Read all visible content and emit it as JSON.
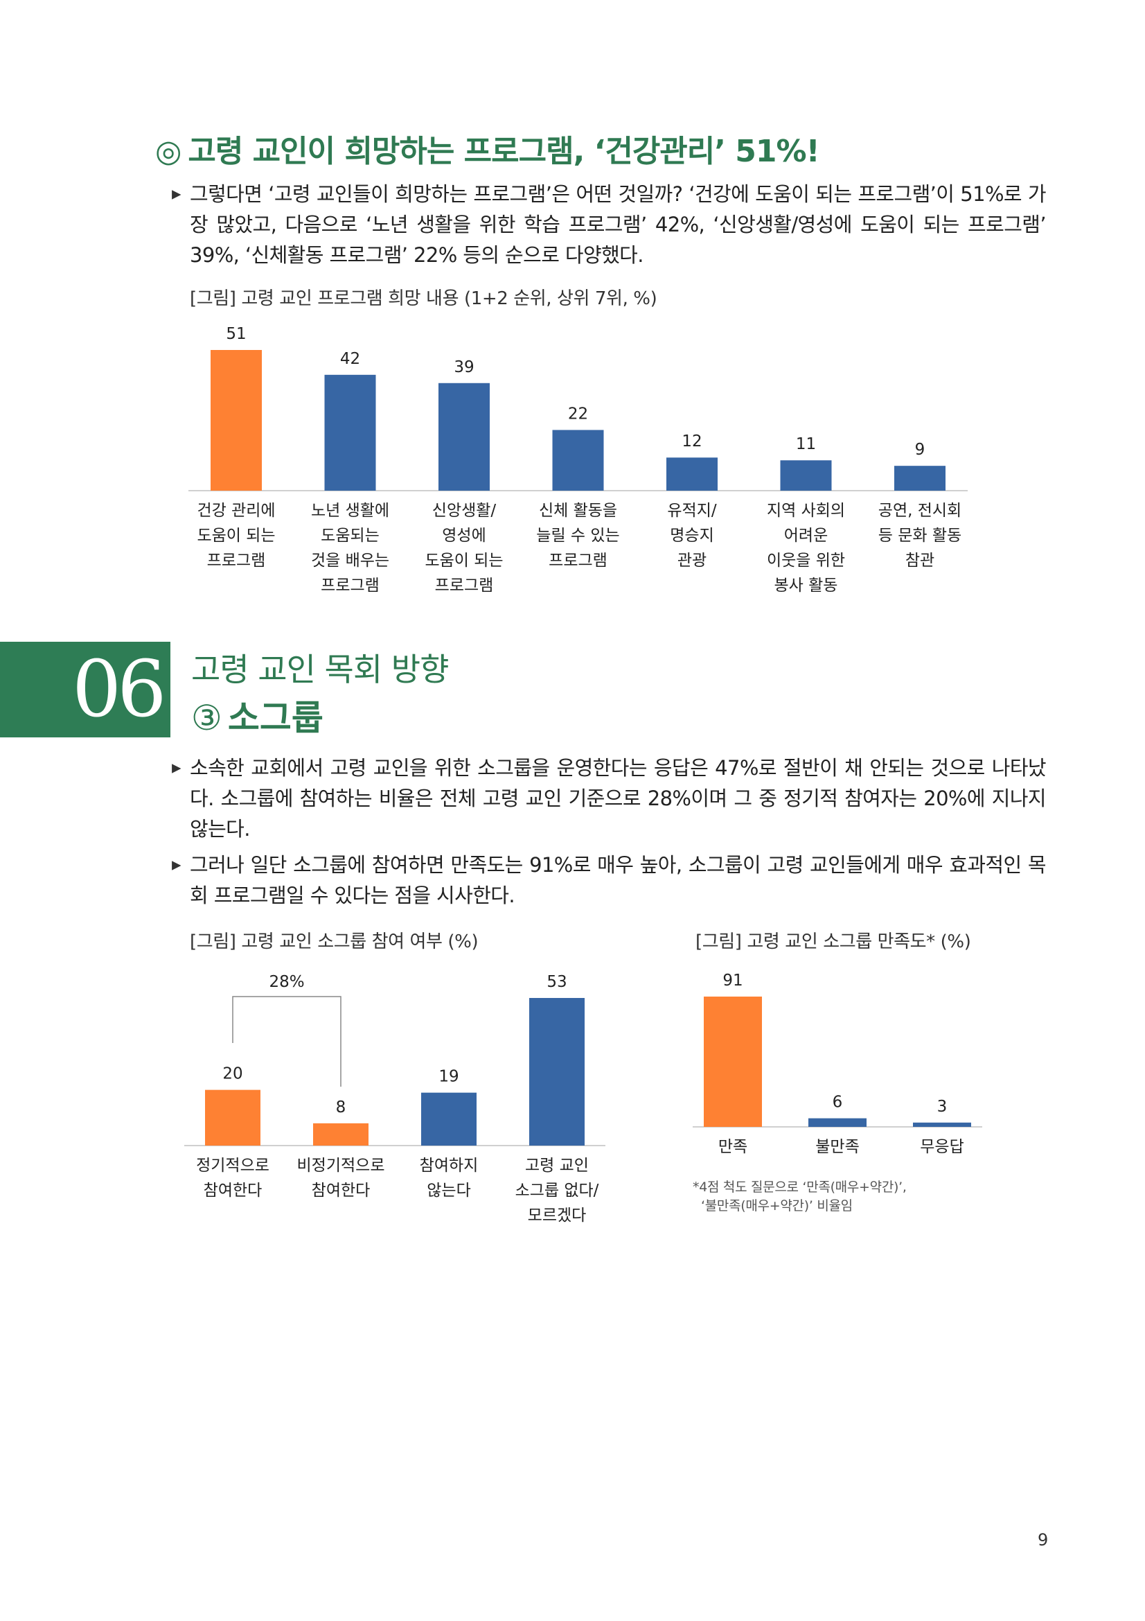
{
  "heading": {
    "mark": "◎",
    "text": "고령 교인이 희망하는 프로그램, ‘건강관리’ 51%!"
  },
  "intro": {
    "bullet": "▸",
    "paragraph": "그렇다면 ‘고령 교인들이 희망하는 프로그램’은 어떤 것일까? ‘건강에 도움이 되는 프로그램’이 51%로 가장 많았고, 다음으로 ‘노년 생활을 위한 학습 프로그램’ 42%, ‘신앙생활/영성에 도움이 되는 프로그램’ 39%, ‘신체활동 프로그램’ 22% 등의 순으로 다양했다."
  },
  "chart1": {
    "caption": "[그림] 고령 교인 프로그램 희망 내용 (1+2 순위, 상위 7위, %)"
  },
  "section": {
    "number": "06",
    "title": "고령 교인 목회 방향",
    "sub_mark": "③",
    "subtitle": "소그룹"
  },
  "body": {
    "bullets": [
      "▸",
      "▸"
    ],
    "paragraphs": [
      "소속한 교회에서 고령 교인을 위한 소그룹을 운영한다는 응답은 47%로 절반이 채 안되는 것으로 나타났다. 소그룹에 참여하는 비율은 전체 고령 교인 기준으로 28%이며 그 중 정기적 참여자는 20%에 지나지 않는다.",
      "그러나 일단 소그룹에 참여하면 만족도는 91%로 매우 높아, 소그룹이 고령 교인들에게 매우 효과적인 목회 프로그램일 수 있다는 점을 시사한다."
    ]
  },
  "chart2": {
    "caption": "[그림] 고령 교인 소그룹 참여 여부 (%)",
    "bracket_label": "28%"
  },
  "chart3": {
    "caption": "[그림] 고령 교인 소그룹 만족도* (%)",
    "footnote_line1": "*4점 척도 질문으로 ‘만족(매우+약간)’,",
    "footnote_line2": "‘불만족(매우+약간)’ 비율임"
  },
  "colors": {
    "orange": "#fe8133",
    "blue": "#3766a4",
    "green": "#2f7a52",
    "axis": "#d0d0d0"
  },
  "page_number": "9",
  "chart_data": [
    {
      "type": "bar",
      "categories": [
        [
          "건강 관리에",
          "도움이 되는",
          "프로그램"
        ],
        [
          "노년 생활에",
          "도움되는",
          "것을 배우는",
          "프로그램"
        ],
        [
          "신앙생활/",
          "영성에",
          "도움이 되는",
          "프로그램"
        ],
        [
          "신체 활동을",
          "늘릴 수 있는",
          "프로그램"
        ],
        [
          "유적지/",
          "명승지",
          "관광"
        ],
        [
          "지역 사회의",
          "어려운",
          "이웃을 위한",
          "봉사 활동"
        ],
        [
          "공연, 전시회",
          "등 문화 활동",
          "참관"
        ]
      ],
      "values": [
        51,
        42,
        39,
        22,
        12,
        11,
        9
      ],
      "highlight": [
        0
      ],
      "ylim": [
        0,
        51
      ]
    },
    {
      "type": "bar",
      "categories": [
        [
          "정기적으로",
          "참여한다"
        ],
        [
          "비정기적으로",
          "참여한다"
        ],
        [
          "참여하지",
          "않는다"
        ],
        [
          "고령 교인",
          "소그룹 없다/",
          "모르겠다"
        ]
      ],
      "values": [
        20,
        8,
        19,
        53
      ],
      "highlight": [
        0,
        1
      ],
      "ylim": [
        0,
        53
      ]
    },
    {
      "type": "bar",
      "categories": [
        [
          "만족"
        ],
        [
          "불만족"
        ],
        [
          "무응답"
        ]
      ],
      "values": [
        91,
        6,
        3
      ],
      "highlight": [
        0
      ],
      "ylim": [
        0,
        91
      ]
    }
  ]
}
